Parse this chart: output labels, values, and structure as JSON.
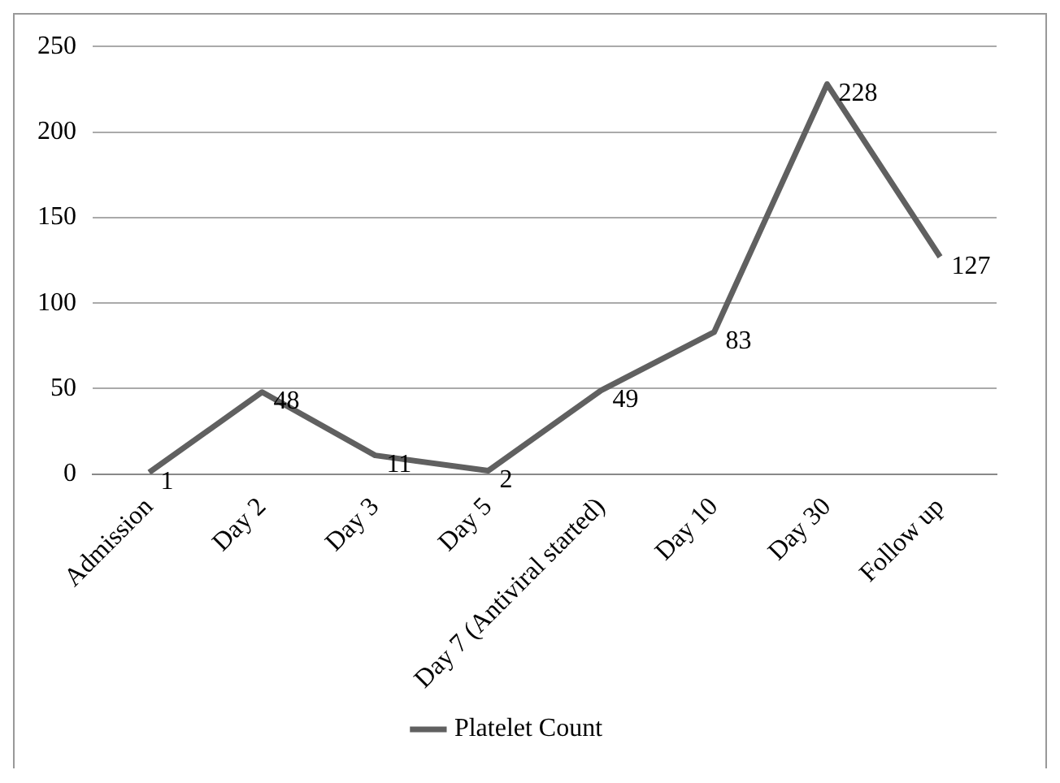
{
  "chart_data": {
    "type": "line",
    "categories": [
      "Admission",
      "Day 2",
      "Day 3",
      "Day 5",
      "Day 7 (Antiviral started)",
      "Day 10",
      "Day 30",
      "Follow up"
    ],
    "series": [
      {
        "name": "Platelet Count",
        "color": "#606060",
        "values": [
          1,
          48,
          11,
          2,
          49,
          83,
          228,
          127
        ]
      }
    ],
    "ylim": [
      0,
      250
    ],
    "yticks": [
      0,
      50,
      100,
      150,
      200,
      250
    ],
    "grid": "y",
    "legend": "bottom",
    "marker": "none",
    "line_style": "solid",
    "data_labels": true
  }
}
